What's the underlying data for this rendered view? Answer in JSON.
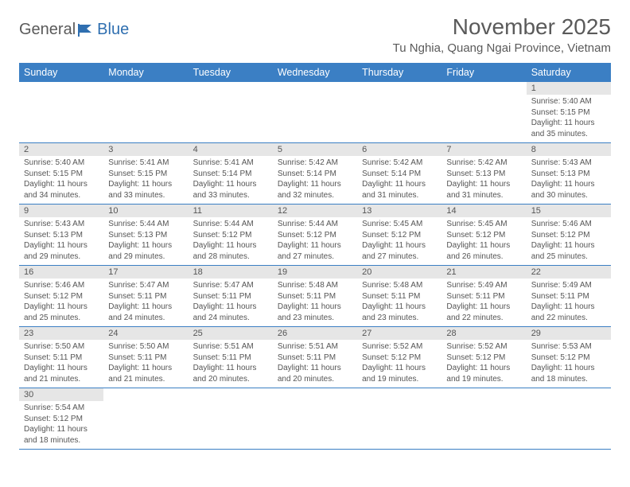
{
  "logo": {
    "text1": "General",
    "text2": "Blue"
  },
  "title": "November 2025",
  "location": "Tu Nghia, Quang Ngai Province, Vietnam",
  "colors": {
    "header_bg": "#3b7fc4",
    "header_fg": "#ffffff",
    "daynum_bg": "#e6e6e6",
    "border": "#3b7fc4",
    "text": "#555555"
  },
  "dayHeaders": [
    "Sunday",
    "Monday",
    "Tuesday",
    "Wednesday",
    "Thursday",
    "Friday",
    "Saturday"
  ],
  "weeks": [
    [
      {
        "n": "",
        "sr": "",
        "ss": "",
        "dl": ""
      },
      {
        "n": "",
        "sr": "",
        "ss": "",
        "dl": ""
      },
      {
        "n": "",
        "sr": "",
        "ss": "",
        "dl": ""
      },
      {
        "n": "",
        "sr": "",
        "ss": "",
        "dl": ""
      },
      {
        "n": "",
        "sr": "",
        "ss": "",
        "dl": ""
      },
      {
        "n": "",
        "sr": "",
        "ss": "",
        "dl": ""
      },
      {
        "n": "1",
        "sr": "Sunrise: 5:40 AM",
        "ss": "Sunset: 5:15 PM",
        "dl": "Daylight: 11 hours and 35 minutes."
      }
    ],
    [
      {
        "n": "2",
        "sr": "Sunrise: 5:40 AM",
        "ss": "Sunset: 5:15 PM",
        "dl": "Daylight: 11 hours and 34 minutes."
      },
      {
        "n": "3",
        "sr": "Sunrise: 5:41 AM",
        "ss": "Sunset: 5:15 PM",
        "dl": "Daylight: 11 hours and 33 minutes."
      },
      {
        "n": "4",
        "sr": "Sunrise: 5:41 AM",
        "ss": "Sunset: 5:14 PM",
        "dl": "Daylight: 11 hours and 33 minutes."
      },
      {
        "n": "5",
        "sr": "Sunrise: 5:42 AM",
        "ss": "Sunset: 5:14 PM",
        "dl": "Daylight: 11 hours and 32 minutes."
      },
      {
        "n": "6",
        "sr": "Sunrise: 5:42 AM",
        "ss": "Sunset: 5:14 PM",
        "dl": "Daylight: 11 hours and 31 minutes."
      },
      {
        "n": "7",
        "sr": "Sunrise: 5:42 AM",
        "ss": "Sunset: 5:13 PM",
        "dl": "Daylight: 11 hours and 31 minutes."
      },
      {
        "n": "8",
        "sr": "Sunrise: 5:43 AM",
        "ss": "Sunset: 5:13 PM",
        "dl": "Daylight: 11 hours and 30 minutes."
      }
    ],
    [
      {
        "n": "9",
        "sr": "Sunrise: 5:43 AM",
        "ss": "Sunset: 5:13 PM",
        "dl": "Daylight: 11 hours and 29 minutes."
      },
      {
        "n": "10",
        "sr": "Sunrise: 5:44 AM",
        "ss": "Sunset: 5:13 PM",
        "dl": "Daylight: 11 hours and 29 minutes."
      },
      {
        "n": "11",
        "sr": "Sunrise: 5:44 AM",
        "ss": "Sunset: 5:12 PM",
        "dl": "Daylight: 11 hours and 28 minutes."
      },
      {
        "n": "12",
        "sr": "Sunrise: 5:44 AM",
        "ss": "Sunset: 5:12 PM",
        "dl": "Daylight: 11 hours and 27 minutes."
      },
      {
        "n": "13",
        "sr": "Sunrise: 5:45 AM",
        "ss": "Sunset: 5:12 PM",
        "dl": "Daylight: 11 hours and 27 minutes."
      },
      {
        "n": "14",
        "sr": "Sunrise: 5:45 AM",
        "ss": "Sunset: 5:12 PM",
        "dl": "Daylight: 11 hours and 26 minutes."
      },
      {
        "n": "15",
        "sr": "Sunrise: 5:46 AM",
        "ss": "Sunset: 5:12 PM",
        "dl": "Daylight: 11 hours and 25 minutes."
      }
    ],
    [
      {
        "n": "16",
        "sr": "Sunrise: 5:46 AM",
        "ss": "Sunset: 5:12 PM",
        "dl": "Daylight: 11 hours and 25 minutes."
      },
      {
        "n": "17",
        "sr": "Sunrise: 5:47 AM",
        "ss": "Sunset: 5:11 PM",
        "dl": "Daylight: 11 hours and 24 minutes."
      },
      {
        "n": "18",
        "sr": "Sunrise: 5:47 AM",
        "ss": "Sunset: 5:11 PM",
        "dl": "Daylight: 11 hours and 24 minutes."
      },
      {
        "n": "19",
        "sr": "Sunrise: 5:48 AM",
        "ss": "Sunset: 5:11 PM",
        "dl": "Daylight: 11 hours and 23 minutes."
      },
      {
        "n": "20",
        "sr": "Sunrise: 5:48 AM",
        "ss": "Sunset: 5:11 PM",
        "dl": "Daylight: 11 hours and 23 minutes."
      },
      {
        "n": "21",
        "sr": "Sunrise: 5:49 AM",
        "ss": "Sunset: 5:11 PM",
        "dl": "Daylight: 11 hours and 22 minutes."
      },
      {
        "n": "22",
        "sr": "Sunrise: 5:49 AM",
        "ss": "Sunset: 5:11 PM",
        "dl": "Daylight: 11 hours and 22 minutes."
      }
    ],
    [
      {
        "n": "23",
        "sr": "Sunrise: 5:50 AM",
        "ss": "Sunset: 5:11 PM",
        "dl": "Daylight: 11 hours and 21 minutes."
      },
      {
        "n": "24",
        "sr": "Sunrise: 5:50 AM",
        "ss": "Sunset: 5:11 PM",
        "dl": "Daylight: 11 hours and 21 minutes."
      },
      {
        "n": "25",
        "sr": "Sunrise: 5:51 AM",
        "ss": "Sunset: 5:11 PM",
        "dl": "Daylight: 11 hours and 20 minutes."
      },
      {
        "n": "26",
        "sr": "Sunrise: 5:51 AM",
        "ss": "Sunset: 5:11 PM",
        "dl": "Daylight: 11 hours and 20 minutes."
      },
      {
        "n": "27",
        "sr": "Sunrise: 5:52 AM",
        "ss": "Sunset: 5:12 PM",
        "dl": "Daylight: 11 hours and 19 minutes."
      },
      {
        "n": "28",
        "sr": "Sunrise: 5:52 AM",
        "ss": "Sunset: 5:12 PM",
        "dl": "Daylight: 11 hours and 19 minutes."
      },
      {
        "n": "29",
        "sr": "Sunrise: 5:53 AM",
        "ss": "Sunset: 5:12 PM",
        "dl": "Daylight: 11 hours and 18 minutes."
      }
    ],
    [
      {
        "n": "30",
        "sr": "Sunrise: 5:54 AM",
        "ss": "Sunset: 5:12 PM",
        "dl": "Daylight: 11 hours and 18 minutes."
      },
      {
        "n": "",
        "sr": "",
        "ss": "",
        "dl": ""
      },
      {
        "n": "",
        "sr": "",
        "ss": "",
        "dl": ""
      },
      {
        "n": "",
        "sr": "",
        "ss": "",
        "dl": ""
      },
      {
        "n": "",
        "sr": "",
        "ss": "",
        "dl": ""
      },
      {
        "n": "",
        "sr": "",
        "ss": "",
        "dl": ""
      },
      {
        "n": "",
        "sr": "",
        "ss": "",
        "dl": ""
      }
    ]
  ]
}
